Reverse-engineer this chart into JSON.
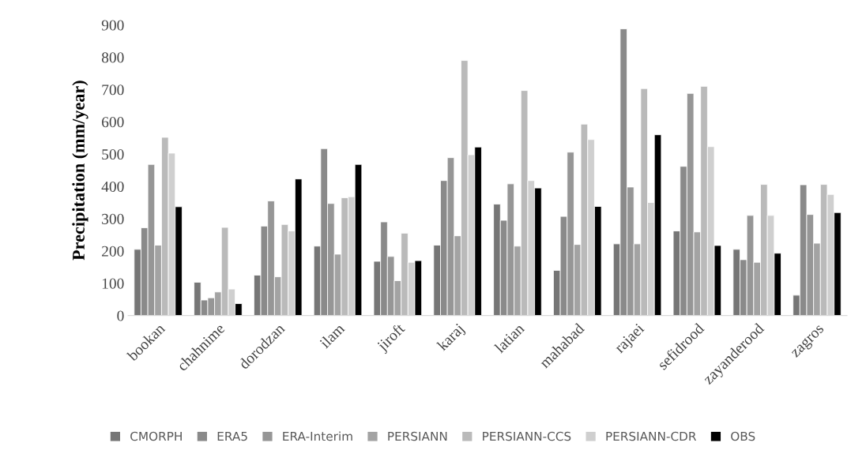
{
  "chart_data": {
    "type": "bar",
    "ylabel": "Precipitation (mm/year)",
    "categories": [
      "bookan",
      "chahnime",
      "dorodzan",
      "ilam",
      "jiroft",
      "karaj",
      "latian",
      "mahabad",
      "rajaei",
      "sefidrood",
      "zayanderood",
      "zagros"
    ],
    "series": [
      {
        "name": "CMORPH",
        "color": "#767676",
        "values": [
          205,
          103,
          125,
          215,
          168,
          218,
          345,
          140,
          222,
          262,
          205,
          63
        ]
      },
      {
        "name": "ERA5",
        "color": "#8a8a8a",
        "values": [
          272,
          48,
          277,
          517,
          290,
          418,
          295,
          307,
          888,
          462,
          173,
          405
        ]
      },
      {
        "name": "ERA-Interim",
        "color": "#969696",
        "values": [
          468,
          55,
          355,
          347,
          183,
          489,
          408,
          506,
          398,
          688,
          310,
          313
        ]
      },
      {
        "name": "PERSIANN",
        "color": "#a3a3a3",
        "values": [
          218,
          73,
          120,
          190,
          108,
          247,
          215,
          220,
          222,
          259,
          165,
          224
        ]
      },
      {
        "name": "PERSIANN-CCS",
        "color": "#bababa",
        "values": [
          552,
          273,
          282,
          365,
          255,
          790,
          697,
          593,
          703,
          710,
          406,
          406
        ]
      },
      {
        "name": "PERSIANN-CDR",
        "color": "#cfcfcf",
        "values": [
          503,
          82,
          262,
          368,
          165,
          498,
          418,
          545,
          350,
          523,
          310,
          375
        ]
      },
      {
        "name": "OBS",
        "color": "#000000",
        "values": [
          337,
          37,
          423,
          468,
          170,
          522,
          395,
          338,
          560,
          217,
          193,
          319
        ]
      }
    ],
    "ylim": [
      0,
      900
    ],
    "yticks": [
      0,
      100,
      200,
      300,
      400,
      500,
      600,
      700,
      800,
      900
    ],
    "grid": false,
    "legend": "bottom"
  }
}
